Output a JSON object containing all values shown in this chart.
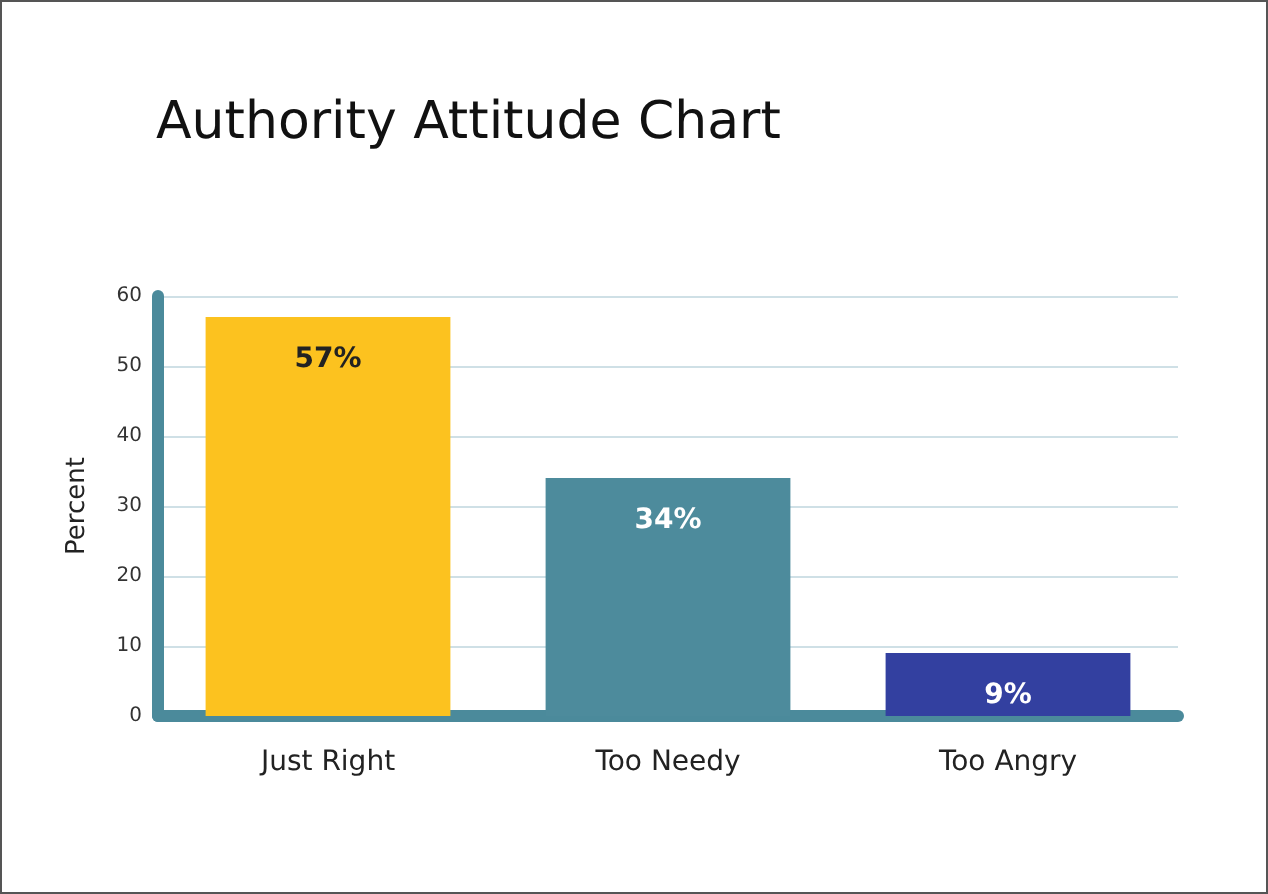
{
  "chart_data": {
    "type": "bar",
    "title": "Authority Attitude Chart",
    "ylabel": "Percent",
    "categories": [
      "Just Right",
      "Too Needy",
      "Too Angry"
    ],
    "values": [
      57,
      34,
      9
    ],
    "colors": [
      "#fcc21f",
      "#4d8b9c",
      "#3340a0"
    ],
    "value_labels": [
      "57%",
      "34%",
      "9%"
    ],
    "ylim": [
      0,
      60
    ],
    "yticks": [
      0,
      10,
      20,
      30,
      40,
      50,
      60
    ],
    "grid": "y"
  }
}
